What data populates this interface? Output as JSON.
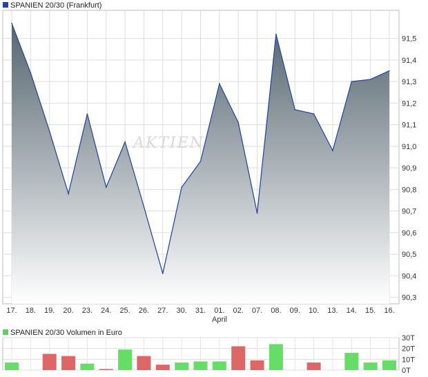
{
  "chart_data": [
    {
      "type": "area",
      "title": "SPANIEN 20/30 (Frankfurt)",
      "legend_color": "#2244aa",
      "line_color": "#2a4aa0",
      "fill_top_color": "#55656f",
      "fill_bottom_color": "#ffffff",
      "categories": [
        "17.",
        "18.",
        "19.",
        "20.",
        "23.",
        "24.",
        "25.",
        "26.",
        "27.",
        "30.",
        "31.",
        "01.",
        "02.",
        "07.",
        "08.",
        "09.",
        "10.",
        "13.",
        "14.",
        "15.",
        "16."
      ],
      "month_label": "April",
      "values": [
        91.57,
        91.34,
        91.07,
        90.78,
        91.15,
        90.81,
        91.02,
        90.72,
        90.41,
        90.81,
        90.93,
        91.29,
        91.11,
        90.69,
        91.52,
        91.17,
        91.15,
        90.98,
        91.3,
        91.31,
        91.35
      ],
      "y_ticks": [
        "91,5",
        "91,4",
        "91,3",
        "91,2",
        "91,1",
        "91,0",
        "90,9",
        "90,8",
        "90,7",
        "90,6",
        "90,5",
        "90,4",
        "90,3"
      ],
      "ylim": [
        90.27,
        91.63
      ],
      "grid": true,
      "watermark": "AKTIEN"
    },
    {
      "type": "bar",
      "title": "SPANIEN 20/30 Volumen in Euro",
      "legend_color": "#66cc66",
      "up_color": "#66dd66",
      "down_color": "#dd6666",
      "categories": [
        "17.",
        "18.",
        "19.",
        "20.",
        "23.",
        "24.",
        "25.",
        "26.",
        "27.",
        "30.",
        "31.",
        "01.",
        "02.",
        "07.",
        "08.",
        "09.",
        "10.",
        "13.",
        "14.",
        "15.",
        "16."
      ],
      "values": [
        7,
        0,
        15,
        13,
        6,
        1,
        19,
        13,
        5,
        7,
        8,
        8,
        22,
        9,
        24,
        0,
        7,
        0,
        16,
        7,
        9
      ],
      "direction": [
        "up",
        "none",
        "down",
        "down",
        "up",
        "down",
        "up",
        "down",
        "down",
        "up",
        "up",
        "up",
        "down",
        "down",
        "up",
        "none",
        "down",
        "none",
        "up",
        "up",
        "up"
      ],
      "y_ticks": [
        "30T",
        "20T",
        "10T",
        "0T"
      ],
      "ylim": [
        0,
        30
      ],
      "grid": true
    }
  ]
}
